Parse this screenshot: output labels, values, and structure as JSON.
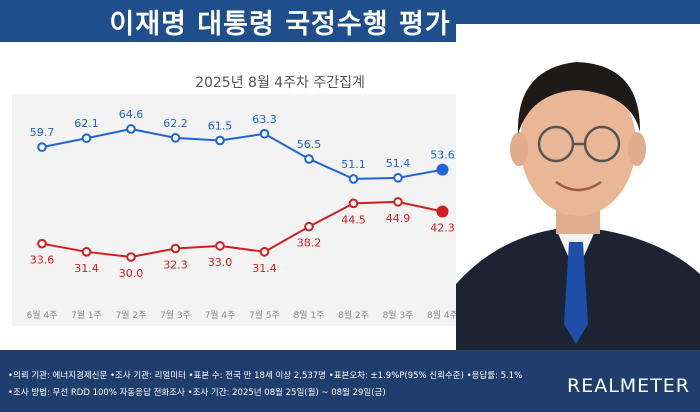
{
  "header": {
    "title": "이재명 대통령 국정수행 평가"
  },
  "subtitle": "2025년 8월 4주차 주간집계",
  "chart_data": {
    "type": "line",
    "title": "2025년 8월 4주차 주간집계",
    "categories": [
      "6월 4주",
      "7월 1주",
      "7월 2주",
      "7월 3주",
      "7월 4주",
      "7월 5주",
      "8월 1주",
      "8월 2주",
      "8월 3주",
      "8월 4주"
    ],
    "series": [
      {
        "name": "",
        "color": "#1e64d2",
        "values": [
          59.7,
          62.1,
          64.6,
          62.2,
          61.5,
          63.3,
          56.5,
          51.1,
          51.4,
          53.6
        ]
      },
      {
        "name": "",
        "color": "#d21e1e",
        "values": [
          33.6,
          31.4,
          30.0,
          32.3,
          33.0,
          31.4,
          38.2,
          44.5,
          44.9,
          42.3
        ]
      }
    ],
    "ylim": [
      20,
      70
    ],
    "grid": false,
    "legend": "none"
  },
  "footer": {
    "line1": "•의뢰 기관: 에너지경제신문  •조사 기관: 리얼미터  •표본 수: 전국 만 18세 이상 2,537명  •표본오차: ±1.9%P(95% 신뢰수준)  •응답률: 5.1%",
    "line2": "•조사 방법: 무선 RDD 100% 자동응답 전화조사  •조사 기간: 2025년 08월 25일(월) ~ 08월 29일(금)"
  },
  "brand": "REALMETER"
}
